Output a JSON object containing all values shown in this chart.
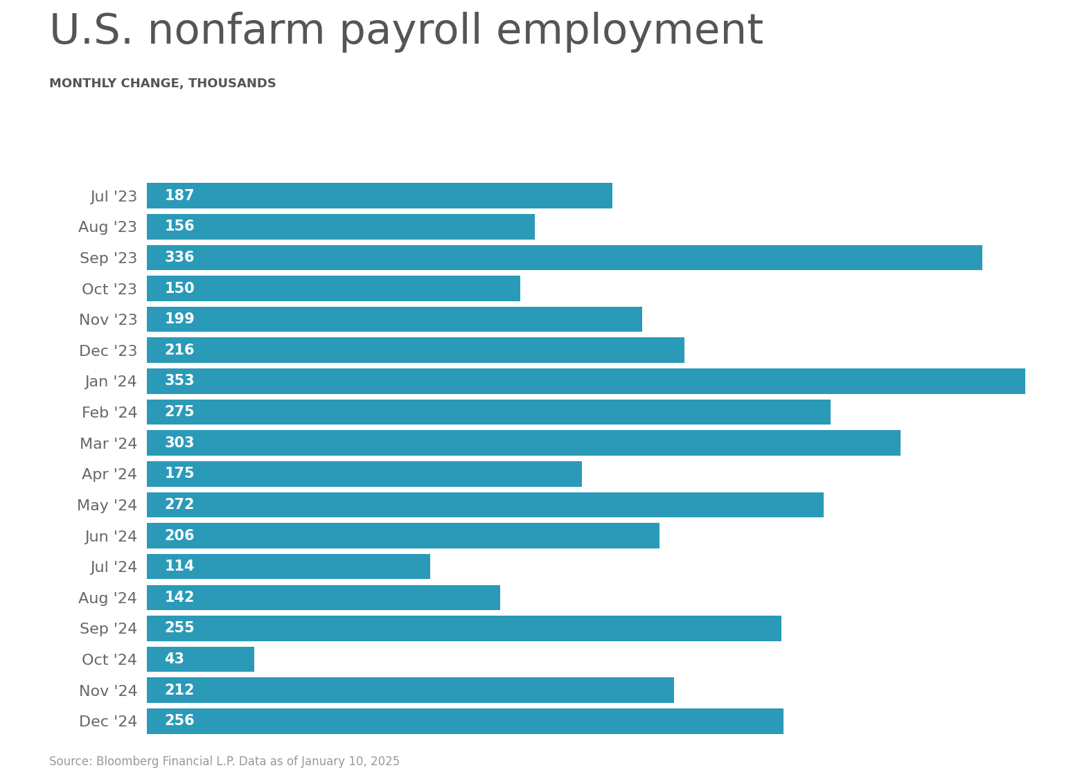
{
  "title": "U.S. nonfarm payroll employment",
  "subtitle": "MONTHLY CHANGE, THOUSANDS",
  "source": "Source: Bloomberg Financial L.P. Data as of January 10, 2025",
  "categories": [
    "Jul '23",
    "Aug '23",
    "Sep '23",
    "Oct '23",
    "Nov '23",
    "Dec '23",
    "Jan '24",
    "Feb '24",
    "Mar '24",
    "Apr '24",
    "May '24",
    "Jun '24",
    "Jul '24",
    "Aug '24",
    "Sep '24",
    "Oct '24",
    "Nov '24",
    "Dec '24"
  ],
  "values": [
    187,
    156,
    336,
    150,
    199,
    216,
    353,
    275,
    303,
    175,
    272,
    206,
    114,
    142,
    255,
    43,
    212,
    256
  ],
  "bar_color": "#2a9ab8",
  "title_color": "#555555",
  "subtitle_color": "#555555",
  "label_color": "#ffffff",
  "ytick_color": "#666666",
  "source_color": "#999999",
  "bg_color": "#ffffff",
  "title_fontsize": 44,
  "subtitle_fontsize": 13,
  "label_fontsize": 15,
  "ytick_fontsize": 16,
  "source_fontsize": 12,
  "xlim": [
    0,
    370
  ]
}
